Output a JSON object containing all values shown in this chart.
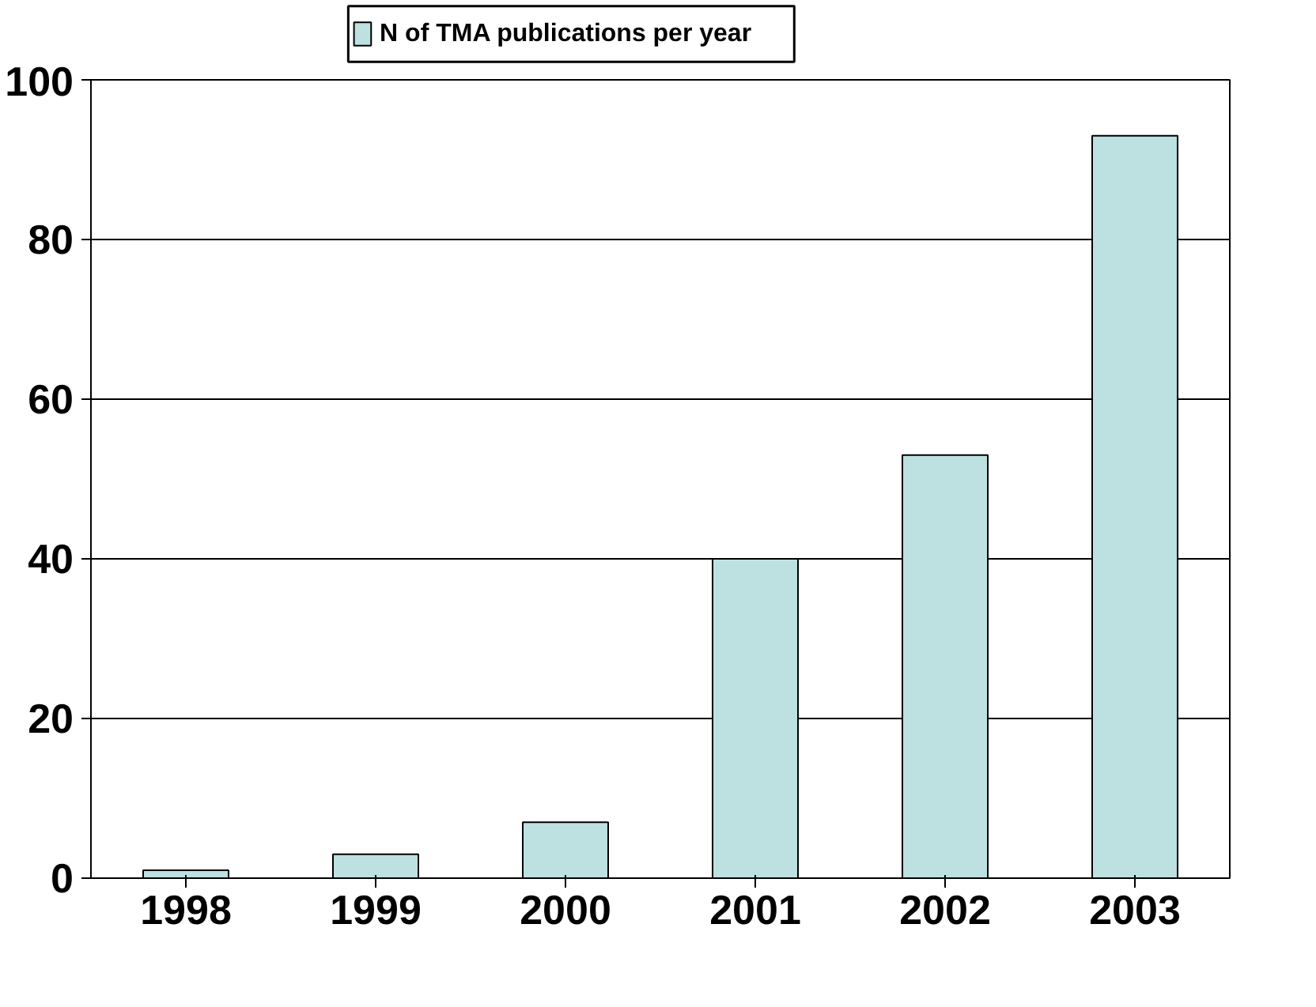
{
  "chart_data": {
    "type": "bar",
    "categories": [
      "1998",
      "1999",
      "2000",
      "2001",
      "2002",
      "2003"
    ],
    "series": [
      {
        "name": "N of TMA publications per year",
        "color": "#bde0e0",
        "values": [
          1,
          3,
          7,
          40,
          53,
          93
        ]
      }
    ],
    "ylim": [
      0,
      100
    ],
    "yticks": [
      0,
      20,
      40,
      60,
      80,
      100
    ],
    "grid": "y",
    "legend": "top"
  }
}
